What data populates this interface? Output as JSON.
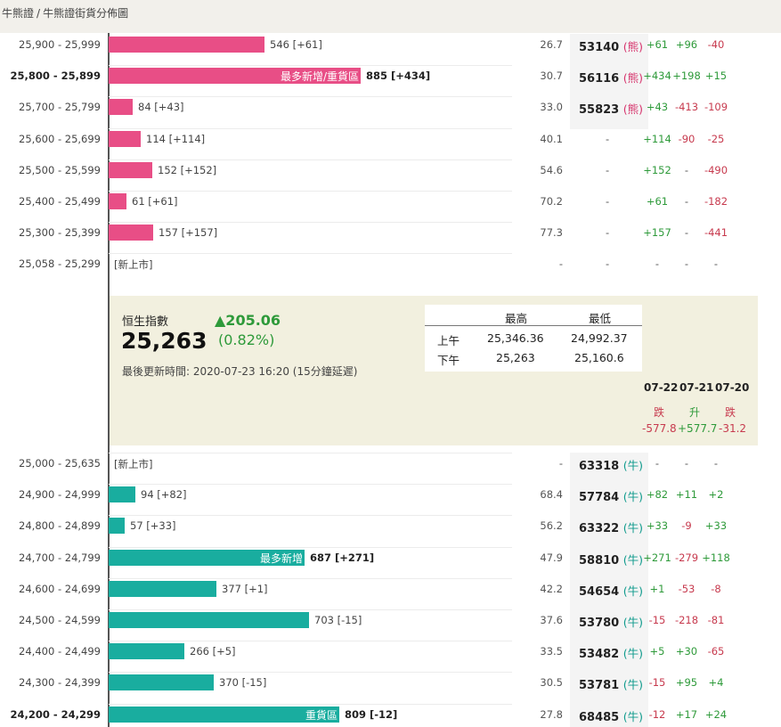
{
  "breadcrumb": [
    "牛熊證",
    "牛熊證街貨分佈圖"
  ],
  "bear_rows": [
    {
      "range": "25,900 - 25,999",
      "bold": false,
      "bar_units": 546,
      "tag": "",
      "label": "546 [+61]",
      "pct": "26.7",
      "code": "53140",
      "kind": "熊",
      "chg": [
        "+61",
        "+96",
        "-40"
      ]
    },
    {
      "range": "25,800 - 25,899",
      "bold": true,
      "bar_units": 885,
      "tag": "最多新增/重貨區",
      "label": "885 [+434]",
      "pct": "30.7",
      "code": "56116",
      "kind": "熊",
      "chg": [
        "+434",
        "+198",
        "+15"
      ]
    },
    {
      "range": "25,700 - 25,799",
      "bold": false,
      "bar_units": 84,
      "tag": "",
      "label": "84 [+43]",
      "pct": "33.0",
      "code": "55823",
      "kind": "熊",
      "chg": [
        "+43",
        "-413",
        "-109"
      ]
    },
    {
      "range": "25,600 - 25,699",
      "bold": false,
      "bar_units": 114,
      "tag": "",
      "label": "114 [+114]",
      "pct": "40.1",
      "code": "",
      "kind": "",
      "chg": [
        "+114",
        "-90",
        "-25"
      ]
    },
    {
      "range": "25,500 - 25,599",
      "bold": false,
      "bar_units": 152,
      "tag": "",
      "label": "152 [+152]",
      "pct": "54.6",
      "code": "",
      "kind": "",
      "chg": [
        "+152",
        "-",
        "-490"
      ]
    },
    {
      "range": "25,400 - 25,499",
      "bold": false,
      "bar_units": 61,
      "tag": "",
      "label": "61 [+61]",
      "pct": "70.2",
      "code": "",
      "kind": "",
      "chg": [
        "+61",
        "-",
        "-182"
      ]
    },
    {
      "range": "25,300 - 25,399",
      "bold": false,
      "bar_units": 157,
      "tag": "",
      "label": "157 [+157]",
      "pct": "77.3",
      "code": "",
      "kind": "",
      "chg": [
        "+157",
        "-",
        "-441"
      ]
    },
    {
      "range": "25,058 - 25,299",
      "bold": false,
      "bar_units": 0,
      "tag": "",
      "label": "[新上市]",
      "pct": "-",
      "code": "",
      "kind": "",
      "chg": [
        "-",
        "-",
        "-"
      ]
    }
  ],
  "index_panel": {
    "name": "恒生指數",
    "value": "25,263",
    "change": "▲205.06",
    "change_pct": "(0.82%)",
    "updated": "最後更新時間: 2020-07-23 16:20 (15分鐘延遲)",
    "hl_headers": [
      "最高",
      "最低"
    ],
    "hl_rows": [
      {
        "session": "上午",
        "high": "25,346.36",
        "low": "24,992.37"
      },
      {
        "session": "下午",
        "high": "25,263",
        "low": "25,160.6"
      }
    ],
    "history": [
      {
        "date": "07-22",
        "dir": "跌",
        "val": "-577.8"
      },
      {
        "date": "07-21",
        "dir": "升",
        "val": "+577.7"
      },
      {
        "date": "07-20",
        "dir": "跌",
        "val": "-31.2"
      }
    ]
  },
  "bull_rows": [
    {
      "range": "25,000 - 25,635",
      "bold": false,
      "bar_units": 0,
      "tag": "",
      "label": "[新上市]",
      "pct": "-",
      "code": "63318",
      "kind": "牛",
      "chg": [
        "-",
        "-",
        "-"
      ]
    },
    {
      "range": "24,900 - 24,999",
      "bold": false,
      "bar_units": 94,
      "tag": "",
      "label": "94 [+82]",
      "pct": "68.4",
      "code": "57784",
      "kind": "牛",
      "chg": [
        "+82",
        "+11",
        "+2"
      ]
    },
    {
      "range": "24,800 - 24,899",
      "bold": false,
      "bar_units": 57,
      "tag": "",
      "label": "57 [+33]",
      "pct": "56.2",
      "code": "63322",
      "kind": "牛",
      "chg": [
        "+33",
        "-9",
        "+33"
      ]
    },
    {
      "range": "24,700 - 24,799",
      "bold": false,
      "bar_units": 687,
      "tag": "最多新增",
      "label": "687 [+271]",
      "pct": "47.9",
      "code": "58810",
      "kind": "牛",
      "chg": [
        "+271",
        "-279",
        "+118"
      ]
    },
    {
      "range": "24,600 - 24,699",
      "bold": false,
      "bar_units": 377,
      "tag": "",
      "label": "377 [+1]",
      "pct": "42.2",
      "code": "54654",
      "kind": "牛",
      "chg": [
        "+1",
        "-53",
        "-8"
      ]
    },
    {
      "range": "24,500 - 24,599",
      "bold": false,
      "bar_units": 703,
      "tag": "",
      "label": "703 [-15]",
      "pct": "37.6",
      "code": "53780",
      "kind": "牛",
      "chg": [
        "-15",
        "-218",
        "-81"
      ]
    },
    {
      "range": "24,400 - 24,499",
      "bold": false,
      "bar_units": 266,
      "tag": "",
      "label": "266 [+5]",
      "pct": "33.5",
      "code": "53482",
      "kind": "牛",
      "chg": [
        "+5",
        "+30",
        "-65"
      ]
    },
    {
      "range": "24,300 - 24,399",
      "bold": false,
      "bar_units": 370,
      "tag": "",
      "label": "370 [-15]",
      "pct": "30.5",
      "code": "53781",
      "kind": "牛",
      "chg": [
        "-15",
        "+95",
        "+4"
      ]
    },
    {
      "range": "24,200 - 24,299",
      "bold": true,
      "bar_units": 809,
      "tag": "重貨區",
      "label": "809 [-12]",
      "pct": "27.8",
      "code": "68485",
      "kind": "牛",
      "chg": [
        "-12",
        "+17",
        "+24"
      ]
    }
  ],
  "colors": {
    "bear": "#e84e86",
    "bull": "#19ad9f",
    "positive": "#2e9a3a",
    "negative": "#c73a4e",
    "panel": "#f2f0df"
  }
}
